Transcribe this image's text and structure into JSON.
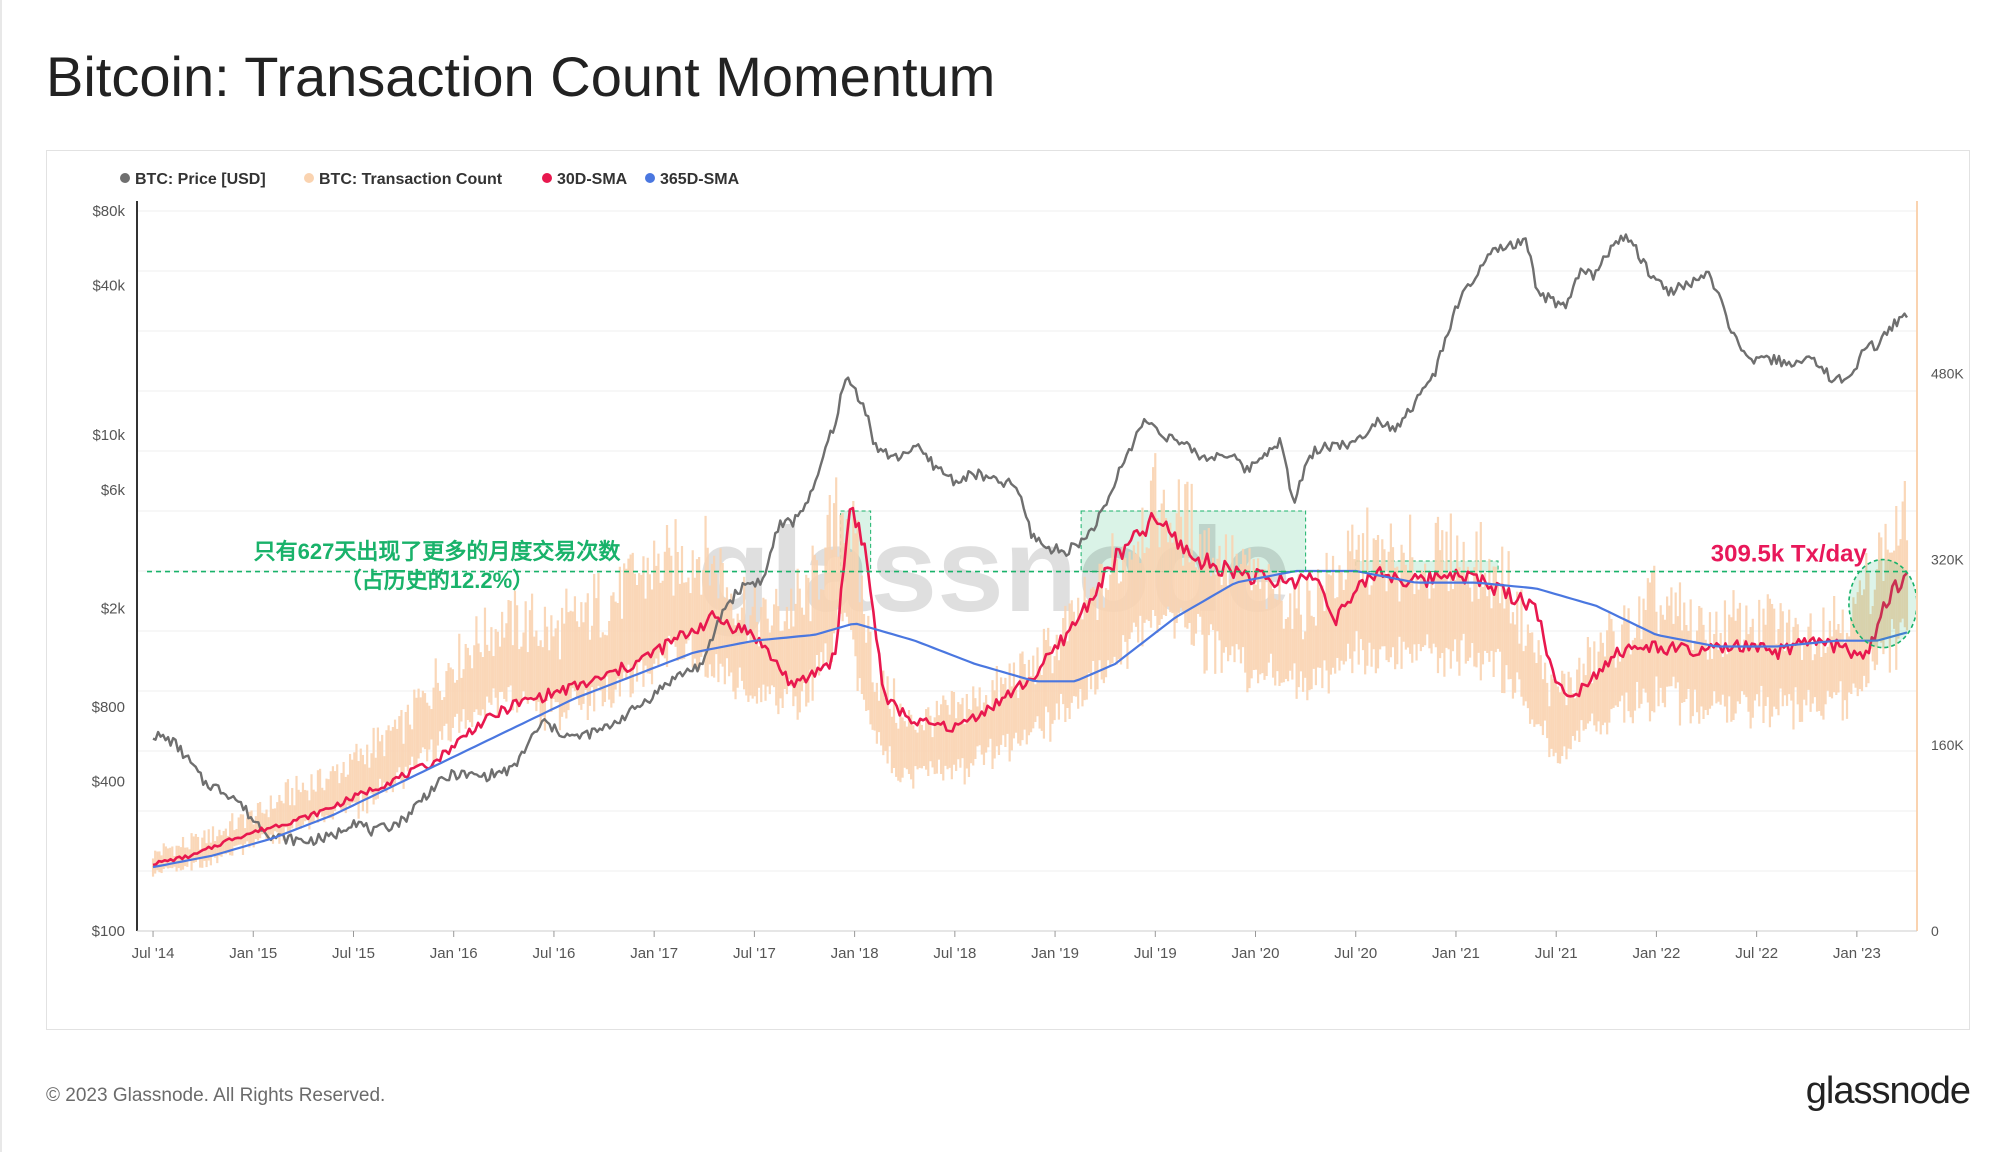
{
  "title": "Bitcoin: Transaction Count Momentum",
  "footer": {
    "copyright": "© 2023 Glassnode. All Rights Reserved.",
    "brand": "glassnode"
  },
  "watermark": "glassnode",
  "colors": {
    "price": "#6f6f6f",
    "tx_count": "#fad3b0",
    "sma30": "#e8184e",
    "sma365": "#4a77e0",
    "highlight": "#19b26a"
  },
  "chart_data": {
    "type": "line",
    "title": "Bitcoin: Transaction Count Momentum",
    "x_range": [
      "2014-06",
      "2023-04"
    ],
    "x_ticks": [
      "Jul '14",
      "Jan '15",
      "Jul '15",
      "Jan '16",
      "Jul '16",
      "Jan '17",
      "Jul '17",
      "Jan '18",
      "Jul '18",
      "Jan '19",
      "Jul '19",
      "Jan '20",
      "Jul '20",
      "Jan '21",
      "Jul '21",
      "Jan '22",
      "Jul '22",
      "Jan '23"
    ],
    "y_left": {
      "scale": "log",
      "range": [
        100,
        80000
      ],
      "ticks": [
        {
          "v": 100,
          "label": "$100"
        },
        {
          "v": 400,
          "label": "$400"
        },
        {
          "v": 800,
          "label": "$800"
        },
        {
          "v": 2000,
          "label": "$2k"
        },
        {
          "v": 6000,
          "label": "$6k"
        },
        {
          "v": 10000,
          "label": "$10k"
        },
        {
          "v": 40000,
          "label": "$40k"
        },
        {
          "v": 80000,
          "label": "$80k"
        }
      ]
    },
    "y_right": {
      "scale": "linear",
      "range": [
        0,
        620000
      ],
      "ticks": [
        {
          "v": 0,
          "label": "0"
        },
        {
          "v": 160000,
          "label": "160K"
        },
        {
          "v": 320000,
          "label": "320K"
        },
        {
          "v": 480000,
          "label": "480K"
        }
      ]
    },
    "legend": [
      {
        "name": "BTC: Price [USD]",
        "color": "#6f6f6f"
      },
      {
        "name": "BTC: Transaction Count",
        "color": "#fad3b0"
      },
      {
        "name": "30D-SMA",
        "color": "#e8184e"
      },
      {
        "name": "365D-SMA",
        "color": "#4a77e0"
      }
    ],
    "series": [
      {
        "name": "BTC: Price [USD]",
        "axis": "left",
        "x": [
          2014.5,
          2014.6,
          2014.75,
          2014.9,
          2015.0,
          2015.1,
          2015.25,
          2015.4,
          2015.5,
          2015.6,
          2015.75,
          2015.9,
          2016.0,
          2016.15,
          2016.3,
          2016.45,
          2016.5,
          2016.6,
          2016.75,
          2016.9,
          2017.0,
          2017.1,
          2017.25,
          2017.35,
          2017.45,
          2017.55,
          2017.62,
          2017.7,
          2017.8,
          2017.9,
          2017.96,
          2018.05,
          2018.1,
          2018.2,
          2018.3,
          2018.4,
          2018.5,
          2018.6,
          2018.7,
          2018.8,
          2018.88,
          2018.96,
          2019.05,
          2019.15,
          2019.25,
          2019.35,
          2019.45,
          2019.55,
          2019.65,
          2019.75,
          2019.85,
          2019.96,
          2020.05,
          2020.12,
          2020.19,
          2020.22,
          2020.3,
          2020.4,
          2020.5,
          2020.6,
          2020.7,
          2020.8,
          2020.9,
          2021.0,
          2021.1,
          2021.2,
          2021.28,
          2021.35,
          2021.4,
          2021.5,
          2021.55,
          2021.62,
          2021.7,
          2021.78,
          2021.86,
          2021.95,
          2022.05,
          2022.15,
          2022.25,
          2022.35,
          2022.42,
          2022.5,
          2022.6,
          2022.7,
          2022.8,
          2022.88,
          2022.96,
          2023.05,
          2023.1,
          2023.18,
          2023.25
        ],
        "values": [
          620,
          580,
          400,
          350,
          280,
          240,
          230,
          240,
          280,
          250,
          280,
          380,
          430,
          420,
          450,
          700,
          650,
          600,
          650,
          780,
          900,
          1050,
          1200,
          2000,
          2500,
          2600,
          4300,
          4500,
          6000,
          11000,
          17000,
          13000,
          9000,
          8000,
          9000,
          7500,
          6500,
          7000,
          6500,
          6300,
          4000,
          3500,
          3400,
          3800,
          5000,
          8000,
          11500,
          10000,
          9000,
          8000,
          8500,
          7200,
          8500,
          9500,
          5000,
          6500,
          8800,
          9200,
          9200,
          11500,
          10700,
          13500,
          18000,
          32000,
          44000,
          56000,
          58000,
          60000,
          38000,
          34000,
          32000,
          46000,
          44000,
          59000,
          62000,
          47000,
          38000,
          40000,
          45000,
          30000,
          21000,
          20000,
          20000,
          19500,
          20000,
          16500,
          16800,
          23000,
          22500,
          28000,
          30000
        ]
      },
      {
        "name": "BTC: Transaction Count",
        "axis": "right",
        "x": [
          2014.5,
          2014.75,
          2015.0,
          2015.25,
          2015.5,
          2015.75,
          2016.0,
          2016.25,
          2016.5,
          2016.75,
          2017.0,
          2017.25,
          2017.5,
          2017.75,
          2017.96,
          2018.1,
          2018.25,
          2018.5,
          2018.75,
          2019.0,
          2019.25,
          2019.5,
          2019.75,
          2020.0,
          2020.25,
          2020.5,
          2020.75,
          2021.0,
          2021.25,
          2021.5,
          2021.75,
          2022.0,
          2022.25,
          2022.5,
          2022.75,
          2023.0,
          2023.15,
          2023.25
        ],
        "values": [
          60000,
          70000,
          90000,
          110000,
          130000,
          160000,
          210000,
          240000,
          230000,
          250000,
          280000,
          290000,
          240000,
          250000,
          330000,
          200000,
          160000,
          170000,
          190000,
          220000,
          270000,
          330000,
          300000,
          270000,
          250000,
          290000,
          280000,
          290000,
          270000,
          180000,
          220000,
          250000,
          230000,
          240000,
          230000,
          250000,
          300000,
          310000
        ]
      },
      {
        "name": "30D-SMA",
        "axis": "right",
        "x": [
          2014.5,
          2014.7,
          2014.9,
          2015.1,
          2015.3,
          2015.5,
          2015.7,
          2015.9,
          2016.1,
          2016.3,
          2016.5,
          2016.7,
          2016.9,
          2017.1,
          2017.3,
          2017.5,
          2017.7,
          2017.9,
          2017.98,
          2018.05,
          2018.15,
          2018.3,
          2018.5,
          2018.7,
          2018.9,
          2019.1,
          2019.3,
          2019.5,
          2019.7,
          2019.9,
          2020.1,
          2020.3,
          2020.4,
          2020.6,
          2020.8,
          2021.0,
          2021.2,
          2021.4,
          2021.5,
          2021.6,
          2021.8,
          2022.0,
          2022.2,
          2022.4,
          2022.6,
          2022.8,
          2023.0,
          2023.05,
          2023.15,
          2023.25
        ],
        "values": [
          58000,
          65000,
          80000,
          90000,
          100000,
          115000,
          130000,
          145000,
          175000,
          195000,
          205000,
          215000,
          230000,
          250000,
          270000,
          255000,
          210000,
          235000,
          370000,
          330000,
          200000,
          180000,
          175000,
          195000,
          220000,
          265000,
          320000,
          355000,
          320000,
          310000,
          300000,
          305000,
          270000,
          310000,
          300000,
          310000,
          295000,
          280000,
          210000,
          205000,
          240000,
          245000,
          240000,
          245000,
          240000,
          250000,
          240000,
          235000,
          285000,
          309500
        ]
      },
      {
        "name": "365D-SMA",
        "axis": "right",
        "x": [
          2014.5,
          2014.8,
          2015.1,
          2015.4,
          2015.7,
          2016.0,
          2016.3,
          2016.6,
          2016.9,
          2017.2,
          2017.5,
          2017.8,
          2018.0,
          2018.3,
          2018.6,
          2018.9,
          2019.1,
          2019.3,
          2019.6,
          2019.9,
          2020.2,
          2020.5,
          2020.8,
          2021.1,
          2021.4,
          2021.7,
          2022.0,
          2022.3,
          2022.6,
          2022.9,
          2023.1,
          2023.25
        ],
        "values": [
          55000,
          65000,
          80000,
          100000,
          125000,
          150000,
          175000,
          200000,
          220000,
          240000,
          250000,
          255000,
          265000,
          250000,
          230000,
          215000,
          215000,
          230000,
          270000,
          300000,
          310000,
          310000,
          300000,
          300000,
          295000,
          280000,
          255000,
          245000,
          245000,
          250000,
          250000,
          257000
        ]
      }
    ],
    "annotations": [
      {
        "text": "只有627天出现了更多的月度交易次数",
        "color": "#19b26a"
      },
      {
        "text": "（占历史的12.2%）",
        "color": "#19b26a"
      },
      {
        "text": "309.5k Tx/day",
        "color": "#e8185a",
        "value": 309500
      }
    ],
    "threshold_line": {
      "value": 309500,
      "axis": "right",
      "style": "dashed",
      "color": "#19b26a"
    },
    "highlight_periods": [
      {
        "from": 2017.93,
        "to": 2018.08
      },
      {
        "from": 2019.13,
        "to": 2020.25
      },
      {
        "from": 2020.5,
        "to": 2021.21
      }
    ]
  }
}
